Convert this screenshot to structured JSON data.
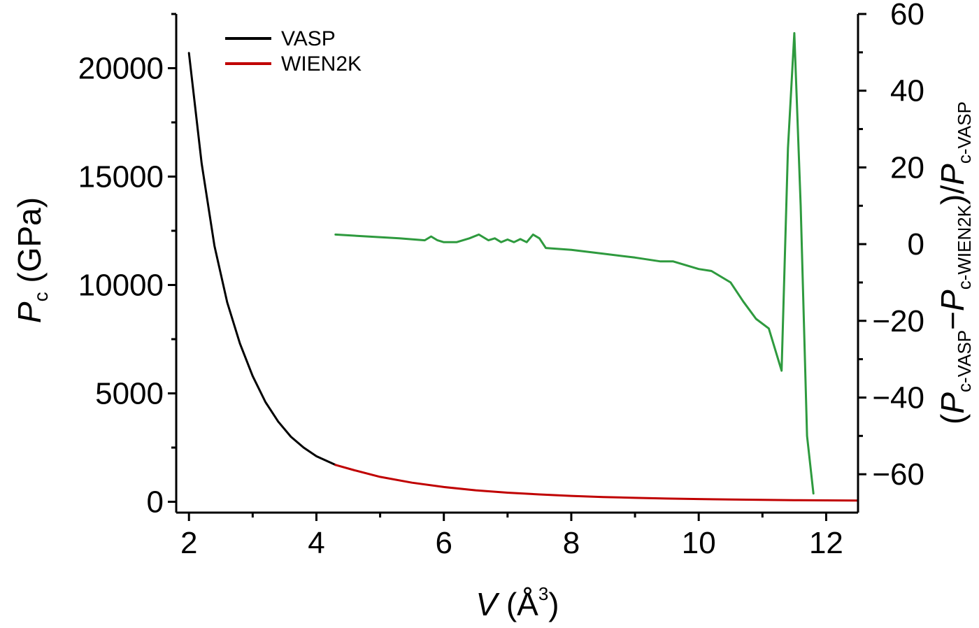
{
  "chart_data": {
    "type": "line",
    "title": "",
    "xlabel": {
      "symbol": "V",
      "unit_open": " (Å",
      "unit_sup": "3",
      "unit_close": ")"
    },
    "ylabel_left": {
      "symbol": "P",
      "sub": "c",
      "unit": " (GPa)"
    },
    "ylabel_right": {
      "open": "(",
      "p1": "P",
      "s1": "c-VASP",
      "minus": "−",
      "p2": "P",
      "s2": "c-WIEN2K",
      "close": ")/",
      "p3": "P",
      "s3": "c-VASP"
    },
    "xlim": [
      1.8,
      12.5
    ],
    "ylim_left": [
      -500,
      22500
    ],
    "ylim_right": [
      -70,
      60
    ],
    "x_ticks": [
      2,
      4,
      6,
      8,
      10,
      12
    ],
    "x_tick_labels": [
      "2",
      "4",
      "6",
      "8",
      "10",
      "12"
    ],
    "y_left_ticks": [
      0,
      5000,
      10000,
      15000,
      20000
    ],
    "y_left_tick_labels": [
      "0",
      "5000",
      "10000",
      "15000",
      "20000"
    ],
    "y_right_ticks": [
      -60,
      -40,
      -20,
      0,
      20,
      40,
      60
    ],
    "y_right_tick_labels": [
      "−60",
      "−40",
      "−20",
      "0",
      "20",
      "40",
      "60"
    ],
    "legend": {
      "position": "top-left",
      "entries": [
        {
          "label": "VASP",
          "color": "#000000"
        },
        {
          "label": "WIEN2K",
          "color": "#c00000"
        }
      ]
    },
    "series": [
      {
        "name": "VASP",
        "axis": "left",
        "color": "#000000",
        "x": [
          2.0,
          2.2,
          2.4,
          2.6,
          2.8,
          3.0,
          3.2,
          3.4,
          3.6,
          3.8,
          4.0,
          4.3
        ],
        "y": [
          20700,
          15600,
          11800,
          9200,
          7300,
          5800,
          4600,
          3700,
          3000,
          2500,
          2100,
          1700
        ]
      },
      {
        "name": "WIEN2K",
        "axis": "left",
        "color": "#c00000",
        "x": [
          4.3,
          4.6,
          5.0,
          5.5,
          6.0,
          6.5,
          7.0,
          7.5,
          8.0,
          8.5,
          9.0,
          9.5,
          10.0,
          10.5,
          11.0,
          11.5,
          12.0,
          12.5
        ],
        "y": [
          1700,
          1450,
          1150,
          880,
          680,
          530,
          420,
          340,
          270,
          220,
          180,
          150,
          125,
          105,
          90,
          75,
          65,
          55
        ]
      },
      {
        "axis": "right",
        "color": "#2e9a3e",
        "x": [
          4.3,
          4.8,
          5.3,
          5.7,
          5.8,
          5.9,
          6.0,
          6.2,
          6.4,
          6.55,
          6.7,
          6.8,
          6.9,
          7.0,
          7.1,
          7.2,
          7.3,
          7.4,
          7.5,
          7.6,
          8.0,
          8.5,
          9.0,
          9.4,
          9.6,
          10.0,
          10.2,
          10.5,
          10.7,
          10.9,
          11.1,
          11.3,
          11.4,
          11.5,
          11.6,
          11.7,
          11.8
        ],
        "y": [
          2.5,
          2.0,
          1.5,
          1.0,
          2.0,
          1.0,
          0.5,
          0.5,
          1.5,
          2.5,
          1.0,
          1.5,
          0.5,
          1.2,
          0.5,
          1.3,
          0.5,
          2.5,
          1.5,
          -1.0,
          -1.5,
          -2.5,
          -3.5,
          -4.5,
          -4.5,
          -6.5,
          -7.0,
          -10.0,
          -15.0,
          -19.5,
          -22.0,
          -33.0,
          25.0,
          55.0,
          10.0,
          -50.0,
          -65.0
        ]
      }
    ]
  }
}
